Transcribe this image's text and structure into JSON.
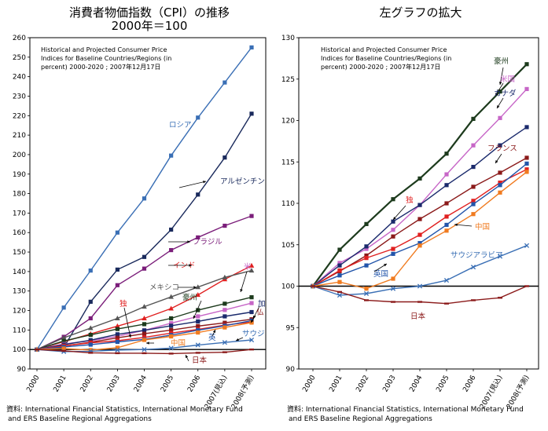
{
  "left_title_line1": "消費者物価指数（CPI）の推移",
  "left_title_line2": "2000年＝100",
  "right_title": "左グラフの拡大",
  "source_line1": "資料:  International Financial Statistics,  International Monetary Fund",
  "source_line2": "and ERS Baseline Regional Aggregations",
  "note_lines": [
    "Historical and Projected Consumer Price",
    "Indices for Baseline Countries/Regions (in",
    "percent) 2000-2020 ; 2007年12月17日"
  ],
  "chart_data": [
    {
      "type": "line",
      "title": "消費者物価指数（CPI）の推移 2000年＝100",
      "x": [
        "2000",
        "2001",
        "2002",
        "2003",
        "2004",
        "2005",
        "2006",
        "2007(見込)",
        "2008(予測)"
      ],
      "ylim": [
        90,
        260
      ],
      "yticks": [
        90,
        100,
        110,
        120,
        130,
        140,
        150,
        160,
        170,
        180,
        190,
        200,
        210,
        220,
        230,
        240,
        250,
        260
      ],
      "grid": false,
      "series": [
        {
          "name": "ロシア",
          "color": "#3a6fb5",
          "marker": "square",
          "values": [
            100,
            121.5,
            140.5,
            160,
            177.5,
            199.5,
            219,
            237,
            255
          ]
        },
        {
          "name": "アルゼンチン",
          "color": "#1a2a5c",
          "marker": "square",
          "values": [
            100,
            101,
            124.5,
            141,
            147.5,
            161.5,
            179.5,
            198.5,
            221
          ]
        },
        {
          "name": "ブラジル",
          "color": "#7b1e7a",
          "marker": "square",
          "values": [
            100,
            106.5,
            116,
            133,
            141.5,
            151,
            157.5,
            163.5,
            168.5
          ]
        },
        {
          "name": "インド",
          "color": "#e02020",
          "marker": "triangle",
          "values": [
            100,
            104,
            108,
            112,
            116,
            121,
            128,
            136,
            143
          ]
        },
        {
          "name": "メキシコ",
          "color": "#555555",
          "marker": "triangle",
          "values": [
            100,
            106,
            111,
            116,
            122,
            127,
            132,
            137,
            140.5
          ]
        },
        {
          "name": "豪州",
          "color": "#1d3b1d",
          "marker": "square",
          "values": [
            100,
            104.4,
            107.5,
            110.5,
            113,
            116,
            120.2,
            123.5,
            126.8
          ]
        },
        {
          "name": "米国",
          "color": "#c766c7",
          "marker": "square",
          "values": [
            100,
            102.8,
            104.5,
            106.8,
            109.8,
            113.5,
            117,
            120.3,
            123.8
          ]
        },
        {
          "name": "カナダ",
          "color": "#1a2a6c",
          "marker": "square",
          "values": [
            100,
            102.5,
            104.8,
            107.8,
            109.8,
            112.2,
            114.4,
            117,
            119.2
          ]
        },
        {
          "name": "フランス",
          "color": "#8b1a1a",
          "marker": "square",
          "values": [
            100,
            101.8,
            103.7,
            106,
            108.1,
            110,
            112,
            113.7,
            115.5
          ]
        },
        {
          "name": "独",
          "color": "#e02020",
          "marker": "square",
          "values": [
            100,
            101.9,
            103.4,
            104.5,
            106.2,
            108.4,
            110.3,
            112.5,
            114.1
          ]
        },
        {
          "name": "英",
          "color": "#2255aa",
          "marker": "square",
          "values": [
            100,
            101.3,
            102.5,
            103.9,
            105.2,
            107.4,
            109.9,
            112.2,
            114.8
          ]
        },
        {
          "name": "中国",
          "color": "#f07b20",
          "marker": "square",
          "values": [
            100,
            100.5,
            99.7,
            100.9,
            104.9,
            106.7,
            108.7,
            111.3,
            113.8
          ]
        },
        {
          "name": "サウジアラビア",
          "color": "#3a6fb5",
          "marker": "x",
          "values": [
            100,
            98.9,
            99.1,
            99.7,
            100,
            100.7,
            102.3,
            103.6,
            104.9
          ]
        },
        {
          "name": "日本",
          "color": "#8b1a1a",
          "marker": "dash",
          "values": [
            100,
            99.3,
            98.3,
            98.1,
            98.1,
            97.9,
            98.3,
            98.6,
            100
          ]
        }
      ],
      "series_labels": {
        "ロシア": "ロシア",
        "アルゼンチン": "アルゼンチン",
        "ブラジル": "ブラジル",
        "インド": "インド",
        "メキシコ": "メキシコ",
        "豪州": "豪州",
        "米国": "米",
        "カナダ": "加",
        "フランス": "仏",
        "独": "独",
        "英": "英",
        "中国": "中国",
        "サウジアラビア": "サウジ",
        "日本": "日本"
      }
    },
    {
      "type": "line",
      "title": "左グラフの拡大",
      "x": [
        "2000",
        "2001",
        "2002",
        "2003",
        "2004",
        "2005",
        "2006",
        "2007(見込)",
        "2008(予測)"
      ],
      "ylim": [
        90,
        130
      ],
      "yticks": [
        90,
        95,
        100,
        105,
        110,
        115,
        120,
        125,
        130
      ],
      "grid": false,
      "series_labels": {
        "豪州": "豪州",
        "米国": "米国",
        "カナダ": "カナダ",
        "フランス": "フランス",
        "独": "独",
        "中国": "中国",
        "サウジアラビア": "サウジアラビア",
        "英": "英国",
        "日本": "日本"
      }
    }
  ]
}
